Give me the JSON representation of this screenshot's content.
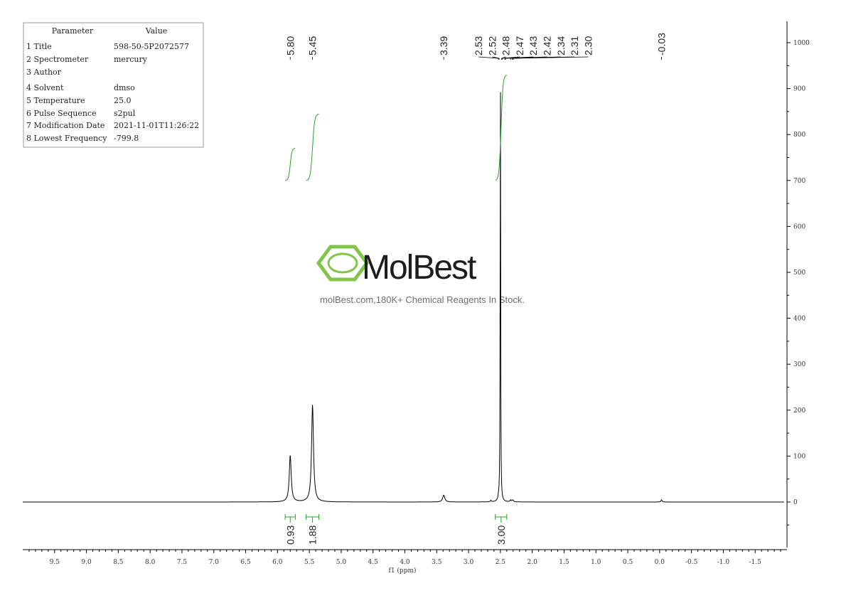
{
  "parameters": {
    "header": [
      "Parameter",
      "Value"
    ],
    "rows": [
      [
        "1 Title",
        "598-50-5P2072577"
      ],
      [
        "2 Spectrometer",
        "mercury"
      ],
      [
        "3 Author",
        ""
      ],
      [
        "4 Solvent",
        "dmso"
      ],
      [
        "5 Temperature",
        "25.0"
      ],
      [
        "6 Pulse Sequence",
        "s2pul"
      ],
      [
        "7 Modification Date",
        "2021-11-01T11:26:22"
      ],
      [
        "8 Lowest Frequency",
        "-799.8"
      ]
    ]
  },
  "watermark": {
    "name": "MolBest",
    "tagline": "molBest.com,180K+ Chemical Reagents In Stock.",
    "logo_color": "#7dc242"
  },
  "colors": {
    "spectrum": "#000000",
    "integral": "#2ca02c",
    "axis": "#000000"
  },
  "chart_data": {
    "type": "line",
    "xlabel": "f1 (ppm)",
    "x_reversed": true,
    "xlim": [
      10.0,
      -2.0
    ],
    "x_ticks": [
      9.5,
      9.0,
      8.5,
      8.0,
      7.5,
      7.0,
      6.5,
      6.0,
      5.5,
      5.0,
      4.5,
      4.0,
      3.5,
      3.0,
      2.5,
      2.0,
      1.5,
      1.0,
      0.5,
      0.0,
      -0.5,
      -1.0,
      -1.5
    ],
    "x_tick_labels": [
      "9.5",
      "9.0",
      "8.5",
      "8.0",
      "7.5",
      "7.0",
      "6.5",
      "6.0",
      "5.5",
      "5.0",
      "4.5",
      "4.0",
      "3.5",
      "3.0",
      "2.5",
      "2.0",
      "1.5",
      "1.0",
      "0.5",
      "0.0",
      "-0.5",
      "-1.0",
      "-1.5"
    ],
    "ylim": [
      -100,
      1050
    ],
    "y_ticks": [
      0,
      100,
      200,
      300,
      400,
      500,
      600,
      700,
      800,
      900,
      1000
    ],
    "peaks": [
      {
        "ppm": 5.8,
        "height": 102,
        "width": 0.018
      },
      {
        "ppm": 5.45,
        "height": 212,
        "width": 0.018
      },
      {
        "ppm": 3.39,
        "height": 15,
        "width": 0.02
      },
      {
        "ppm": 2.5,
        "height": 1000,
        "width": 0.004
      },
      {
        "ppm": 2.53,
        "height": 6,
        "width": 0.01
      },
      {
        "ppm": 2.34,
        "height": 4,
        "width": 0.01
      },
      {
        "ppm": 2.31,
        "height": 3,
        "width": 0.01
      },
      {
        "ppm": 2.3,
        "height": 2,
        "width": 0.01
      },
      {
        "ppm": 2.65,
        "height": 3,
        "width": 0.01
      },
      {
        "ppm": -0.03,
        "height": 5,
        "width": 0.01
      }
    ],
    "peak_labels": [
      "5.80",
      "5.45",
      "3.39",
      "2.53",
      "2.52",
      "2.48",
      "2.47",
      "2.43",
      "2.42",
      "2.34",
      "2.31",
      "2.30",
      "-0.03"
    ],
    "peak_label_positions": [
      5.8,
      5.45,
      3.39,
      2.53,
      2.52,
      2.48,
      2.47,
      2.43,
      2.42,
      2.34,
      2.31,
      2.3,
      -0.03
    ],
    "integrals": [
      {
        "from": 5.88,
        "to": 5.72,
        "value": "0.93",
        "curve_start": 700,
        "curve_end": 770
      },
      {
        "from": 5.55,
        "to": 5.35,
        "value": "1.88",
        "curve_start": 700,
        "curve_end": 845
      },
      {
        "from": 2.58,
        "to": 2.4,
        "value": "3.00",
        "curve_start": 700,
        "curve_end": 930
      }
    ]
  }
}
